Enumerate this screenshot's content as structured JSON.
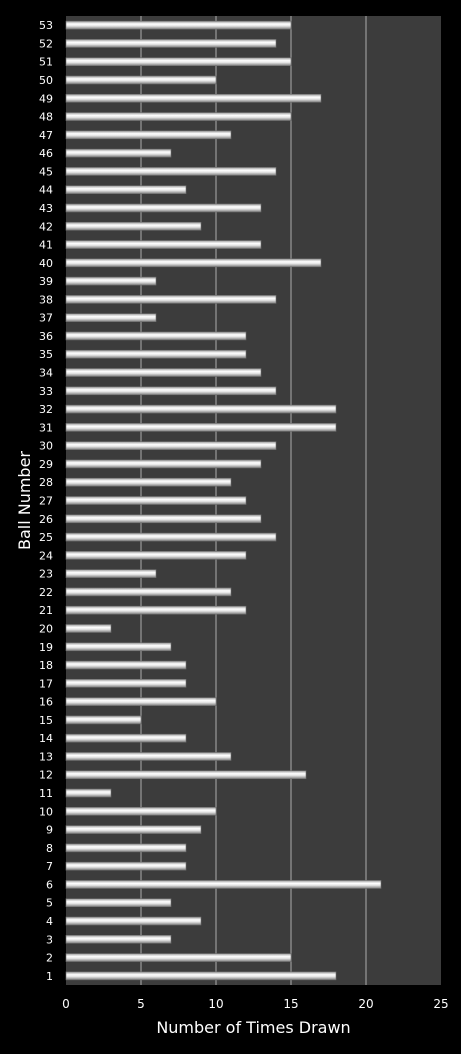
{
  "chart_data": {
    "type": "bar",
    "orientation": "horizontal",
    "title": "",
    "xlabel": "Number of Times Drawn",
    "ylabel": "Ball Number",
    "xlim": [
      0,
      25
    ],
    "xticks": [
      "0",
      "5",
      "10",
      "15",
      "20",
      "25"
    ],
    "categories": [
      "1",
      "2",
      "3",
      "4",
      "5",
      "6",
      "7",
      "8",
      "9",
      "10",
      "11",
      "12",
      "13",
      "14",
      "15",
      "16",
      "17",
      "18",
      "19",
      "20",
      "21",
      "22",
      "23",
      "24",
      "25",
      "26",
      "27",
      "28",
      "29",
      "30",
      "31",
      "32",
      "33",
      "34",
      "35",
      "36",
      "37",
      "38",
      "39",
      "40",
      "41",
      "42",
      "43",
      "44",
      "45",
      "46",
      "47",
      "48",
      "49",
      "50",
      "51",
      "52",
      "53"
    ],
    "values": [
      18,
      15,
      7,
      9,
      7,
      21,
      8,
      8,
      9,
      10,
      3,
      16,
      11,
      8,
      5,
      10,
      8,
      8,
      7,
      3,
      12,
      11,
      6,
      12,
      14,
      13,
      12,
      11,
      13,
      14,
      18,
      18,
      14,
      13,
      12,
      12,
      6,
      14,
      6,
      17,
      13,
      9,
      13,
      8,
      14,
      7,
      11,
      15,
      17,
      10,
      15,
      14,
      15
    ],
    "grid": "vertical",
    "legend": "none",
    "colors": {
      "page_background": "#000000",
      "plot_background": "#3c3c3c",
      "gridline": "#c8c8c8",
      "bar_light": "#ffffff",
      "bar_dark": "#8a8a8a",
      "text": "#ffffff"
    }
  }
}
